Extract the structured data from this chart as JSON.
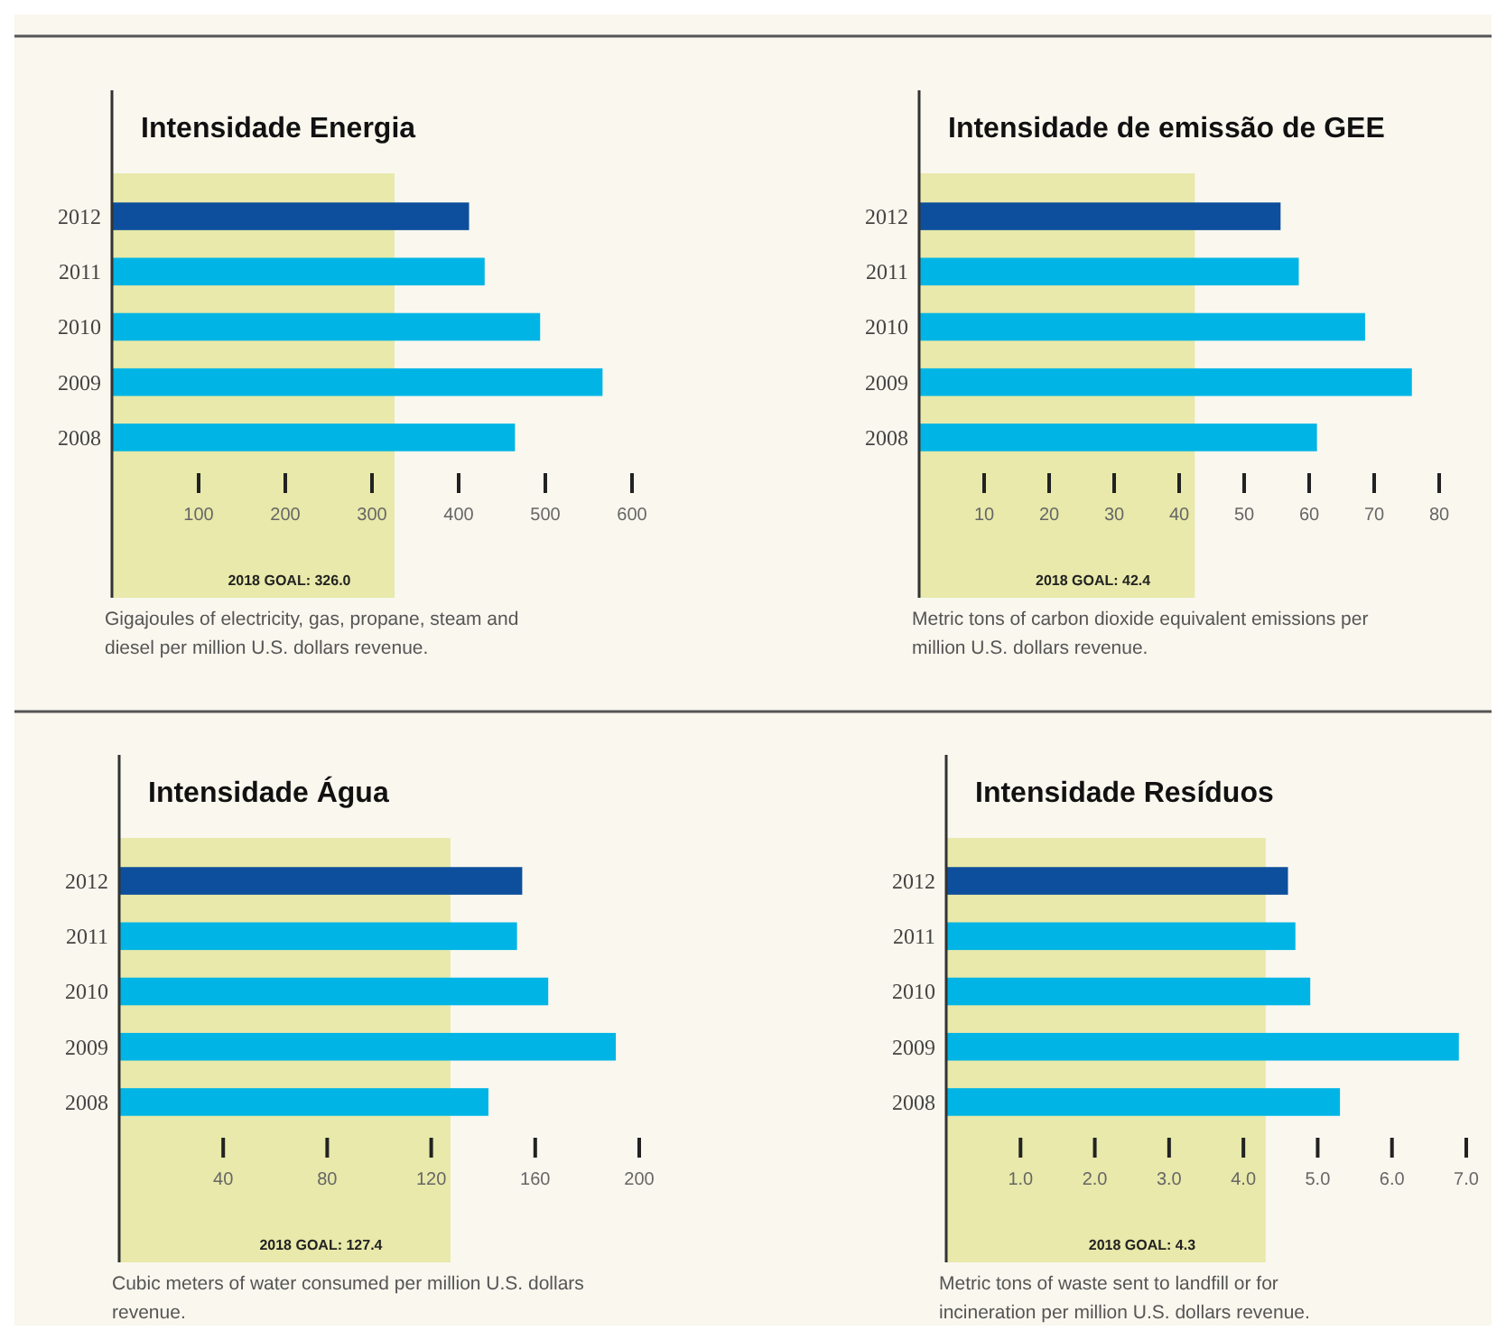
{
  "chart_data": [
    {
      "type": "bar",
      "orientation": "horizontal",
      "title": "Intensidade Energia",
      "categories": [
        "2012",
        "2011",
        "2010",
        "2009",
        "2008"
      ],
      "values": [
        412,
        430,
        494,
        566,
        465
      ],
      "colors": [
        "#0d4f9c",
        "#00b5e5",
        "#00b5e5",
        "#00b5e5",
        "#00b5e5"
      ],
      "xlim": [
        0,
        600
      ],
      "xticks": [
        100,
        200,
        300,
        400,
        500,
        600
      ],
      "bands": [
        {
          "axis": "x",
          "from": 0,
          "to": 326,
          "label": "2018 GOAL: 326.0",
          "color": "#e8e9aa"
        }
      ],
      "annotations": [
        "Gigajoules of electricity, gas, propane, steam and diesel per million U.S. dollars revenue."
      ],
      "grid": false
    },
    {
      "type": "bar",
      "orientation": "horizontal",
      "title": "Intensidade de emissão de GEE",
      "categories": [
        "2012",
        "2011",
        "2010",
        "2009",
        "2008"
      ],
      "values": [
        55.6,
        58.4,
        68.6,
        75.8,
        61.2
      ],
      "colors": [
        "#0d4f9c",
        "#00b5e5",
        "#00b5e5",
        "#00b5e5",
        "#00b5e5"
      ],
      "xlim": [
        0,
        80
      ],
      "xticks": [
        10,
        20,
        30,
        40,
        50,
        60,
        70,
        80
      ],
      "bands": [
        {
          "axis": "x",
          "from": 0,
          "to": 42.4,
          "label": "2018 GOAL: 42.4",
          "color": "#e8e9aa"
        }
      ],
      "annotations": [
        "Metric tons of carbon dioxide equivalent emissions per million U.S. dollars revenue."
      ],
      "grid": false
    },
    {
      "type": "bar",
      "orientation": "horizontal",
      "title": "Intensidade Água",
      "categories": [
        "2012",
        "2011",
        "2010",
        "2009",
        "2008"
      ],
      "values": [
        155,
        153,
        165,
        191,
        142
      ],
      "colors": [
        "#0d4f9c",
        "#00b5e5",
        "#00b5e5",
        "#00b5e5",
        "#00b5e5"
      ],
      "xlim": [
        0,
        200
      ],
      "xticks": [
        40,
        80,
        120,
        160,
        200
      ],
      "bands": [
        {
          "axis": "x",
          "from": 0,
          "to": 127.4,
          "label": "2018 GOAL: 127.4",
          "color": "#e8e9aa"
        }
      ],
      "annotations": [
        "Cubic meters of water consumed per million U.S. dollars revenue."
      ],
      "grid": false
    },
    {
      "type": "bar",
      "orientation": "horizontal",
      "title": "Intensidade Resíduos",
      "categories": [
        "2012",
        "2011",
        "2010",
        "2009",
        "2008"
      ],
      "values": [
        4.6,
        4.7,
        4.9,
        6.9,
        5.3
      ],
      "colors": [
        "#0d4f9c",
        "#00b5e5",
        "#00b5e5",
        "#00b5e5",
        "#00b5e5"
      ],
      "xlim": [
        0,
        7
      ],
      "xticks": [
        {
          "value": 1,
          "label": "1.0"
        },
        {
          "value": 2,
          "label": "2.0"
        },
        {
          "value": 3,
          "label": "3.0"
        },
        {
          "value": 4,
          "label": "4.0"
        },
        {
          "value": 5,
          "label": "5.0"
        },
        {
          "value": 6,
          "label": "6.0"
        },
        {
          "value": 7,
          "label": "7.0"
        }
      ],
      "bands": [
        {
          "axis": "x",
          "from": 0,
          "to": 4.3,
          "label": "2018 GOAL: 4.3",
          "color": "#e8e9aa"
        }
      ],
      "annotations": [
        "Metric tons of waste sent to landfill or for incineration per million U.S. dollars revenue."
      ],
      "grid": false
    }
  ]
}
